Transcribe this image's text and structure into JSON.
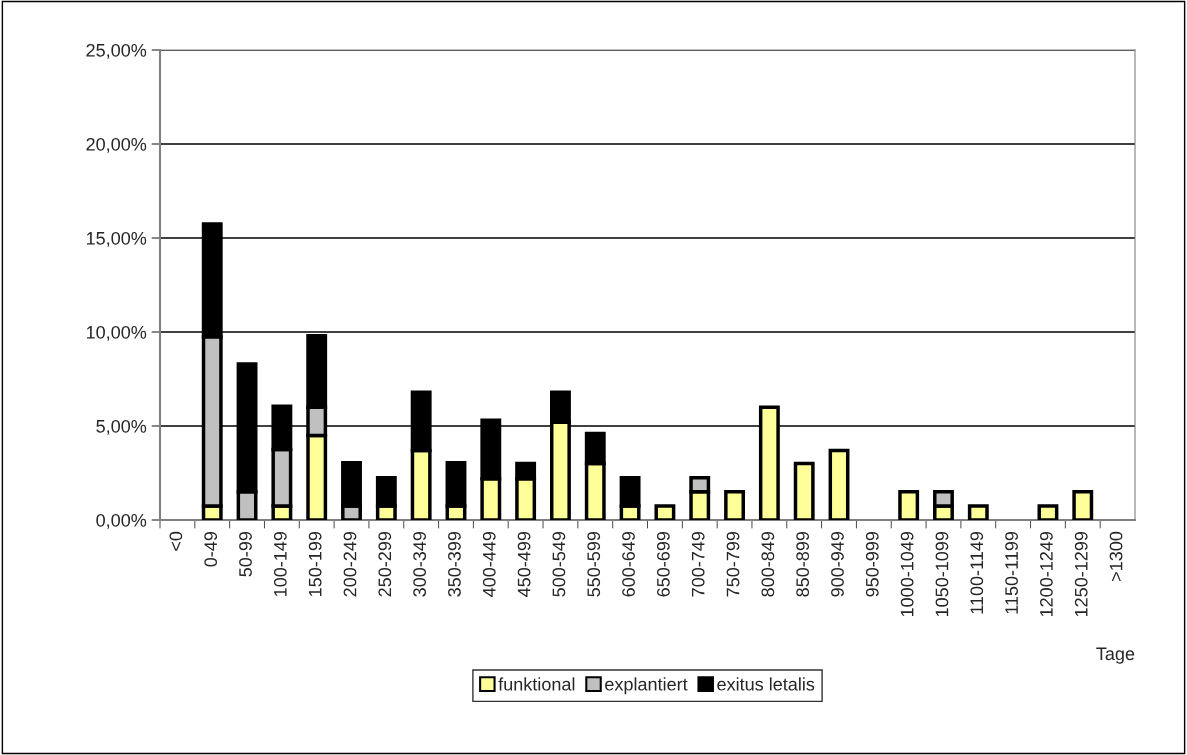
{
  "chart_data": {
    "type": "bar",
    "stacked": true,
    "xlabel": "Tage",
    "categories": [
      "<0",
      "0-49",
      "50-99",
      "100-149",
      "150-199",
      "200-249",
      "250-299",
      "300-349",
      "350-399",
      "400-449",
      "450-499",
      "500-549",
      "550-599",
      "600-649",
      "650-699",
      "700-749",
      "750-799",
      "800-849",
      "850-899",
      "900-949",
      "950-999",
      "1000-1049",
      "1050-1099",
      "1100-1149",
      "1150-1199",
      "1200-1249",
      "1250-1299",
      ">1300"
    ],
    "series": [
      {
        "name": "funktional",
        "color": "#ffff99",
        "values": [
          0,
          0.75,
          0,
          0.75,
          4.5,
          0,
          0.75,
          3.7,
          0.75,
          2.2,
          2.2,
          5.2,
          3.0,
          0.75,
          0.75,
          1.5,
          1.5,
          6.0,
          3.0,
          3.7,
          0,
          1.5,
          0.75,
          0.75,
          0,
          0.75,
          1.5,
          0
        ]
      },
      {
        "name": "explantiert",
        "color": "#c0c0c0",
        "values": [
          0,
          9.0,
          1.5,
          3.0,
          1.5,
          0.75,
          0,
          0,
          0,
          0,
          0,
          0,
          0,
          0,
          0,
          0.75,
          0,
          0,
          0,
          0,
          0,
          0,
          0.75,
          0,
          0,
          0,
          0,
          0
        ]
      },
      {
        "name": "exitus letalis",
        "color": "#000000",
        "values": [
          0,
          6.0,
          6.8,
          2.3,
          3.8,
          2.3,
          1.5,
          3.1,
          2.3,
          3.1,
          0.8,
          1.6,
          1.6,
          1.5,
          0,
          0,
          0,
          0,
          0,
          0,
          0,
          0,
          0,
          0,
          0,
          0,
          0,
          0
        ]
      }
    ],
    "ylim": [
      0,
      25
    ],
    "yticks": [
      {
        "value": 0,
        "label": "0,00%"
      },
      {
        "value": 5,
        "label": "5,00%"
      },
      {
        "value": 10,
        "label": "10,00%"
      },
      {
        "value": 15,
        "label": "15,00%"
      },
      {
        "value": 20,
        "label": "20,00%"
      },
      {
        "value": 25,
        "label": "25,00%"
      }
    ],
    "grid": "y",
    "legend": "bottom"
  }
}
